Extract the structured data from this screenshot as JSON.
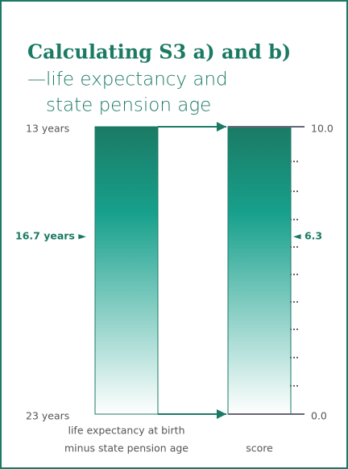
{
  "title": "Calculating S3 a) and b)",
  "subtitle": [
    "—life expectancy and",
    "state pension age"
  ],
  "left_scale": {
    "top": "13 years",
    "bottom": "23 years",
    "marker": "16.7 years ►",
    "caption": [
      "life expectancy at birth",
      "minus state pension age"
    ]
  },
  "right_scale": {
    "top": "10.0",
    "bottom": "0.0",
    "marker": "◄ 6.3",
    "caption": "score"
  }
}
